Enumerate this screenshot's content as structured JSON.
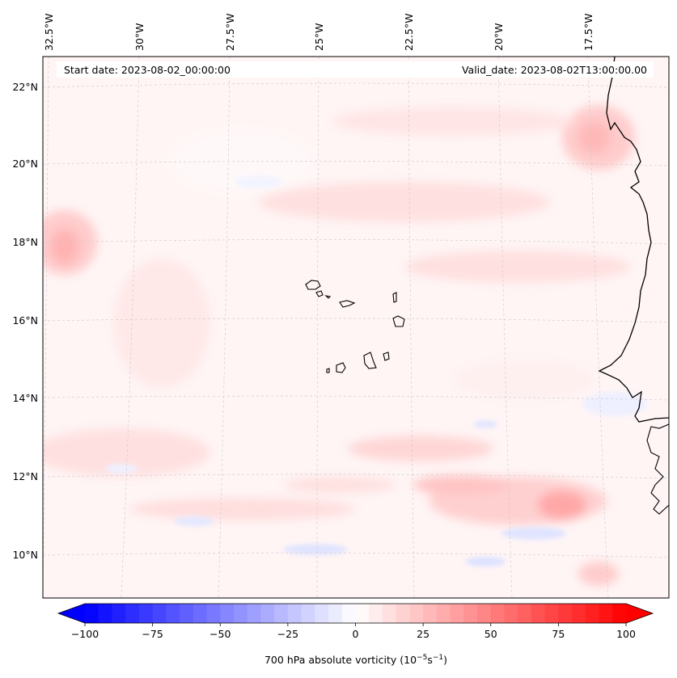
{
  "map": {
    "title_left": "Start date: 2023-08-02_00:00:00",
    "title_right": "Valid_date: 2023-08-02T13:00:00.00",
    "lon_labels": [
      "32.5°W",
      "30°W",
      "27.5°W",
      "25°W",
      "22.5°W",
      "20°W",
      "17.5°W"
    ],
    "lat_labels": [
      "22°N",
      "20°N",
      "18°N",
      "16°N",
      "14°N",
      "12°N",
      "10°N"
    ],
    "lon_values": [
      -32.5,
      -30,
      -27.5,
      -25,
      -22.5,
      -20,
      -17.5
    ],
    "lat_values": [
      22,
      20,
      18,
      16,
      14,
      12,
      10
    ],
    "variable": "700 hPa absolute vorticity"
  },
  "colorbar": {
    "ticks": [
      "−100",
      "−75",
      "−50",
      "−25",
      "0",
      "25",
      "50",
      "75",
      "100"
    ],
    "tick_values": [
      -100,
      -75,
      -50,
      -25,
      0,
      25,
      50,
      75,
      100
    ],
    "label_main": "700 hPa absolute vorticity (10",
    "label_exp1": "−5",
    "label_mid": "s",
    "label_exp2": "−1",
    "label_end": ")",
    "min": -100,
    "max": 100,
    "step": 5,
    "color_low": "#0000ff",
    "color_mid": "#ffffff",
    "color_high": "#ff0000"
  }
}
